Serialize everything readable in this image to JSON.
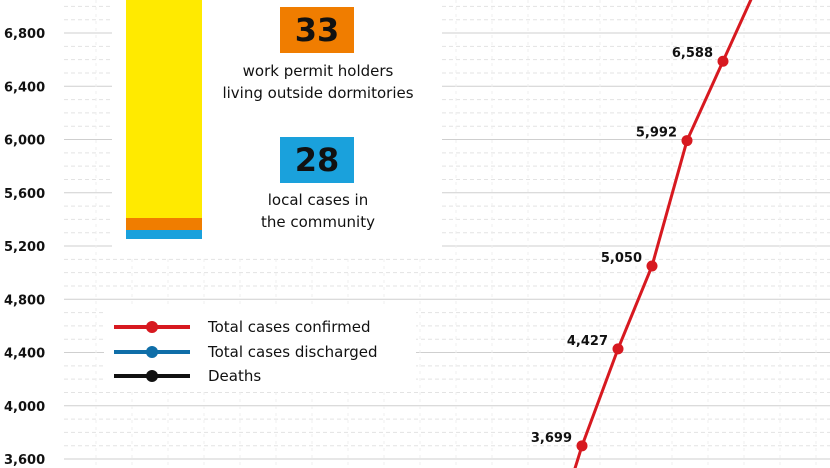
{
  "chart_data": {
    "type": "line",
    "y_ticks": [
      "6,800",
      "6,400",
      "6,000",
      "5,600",
      "5,200",
      "4,800",
      "4,400",
      "4,000",
      "3,600"
    ],
    "ylim": [
      3600,
      7000
    ],
    "series": [
      {
        "name": "Total cases confirmed",
        "color": "#d71920",
        "points": [
          {
            "value": 3699,
            "label": "3,699"
          },
          {
            "value": 4427,
            "label": "4,427"
          },
          {
            "value": 5050,
            "label": "5,050"
          },
          {
            "value": 5992,
            "label": "5,992"
          },
          {
            "value": 6588,
            "label": "6,588"
          }
        ]
      }
    ],
    "legend": [
      {
        "label": "Total cases confirmed",
        "color": "#d71920"
      },
      {
        "label": "Total cases discharged",
        "color": "#0f6ea8"
      },
      {
        "label": "Deaths",
        "color": "#111111"
      }
    ],
    "grid": true
  },
  "breakdown": {
    "work_permit": {
      "count": "33",
      "caption_line1": "work permit holders",
      "caption_line2": "living outside dormitories",
      "color": "#f07d00"
    },
    "local": {
      "count": "28",
      "caption_line1": "local cases in",
      "caption_line2": "the community",
      "color": "#1aa1dc"
    },
    "bar_color": "#ffea00"
  }
}
